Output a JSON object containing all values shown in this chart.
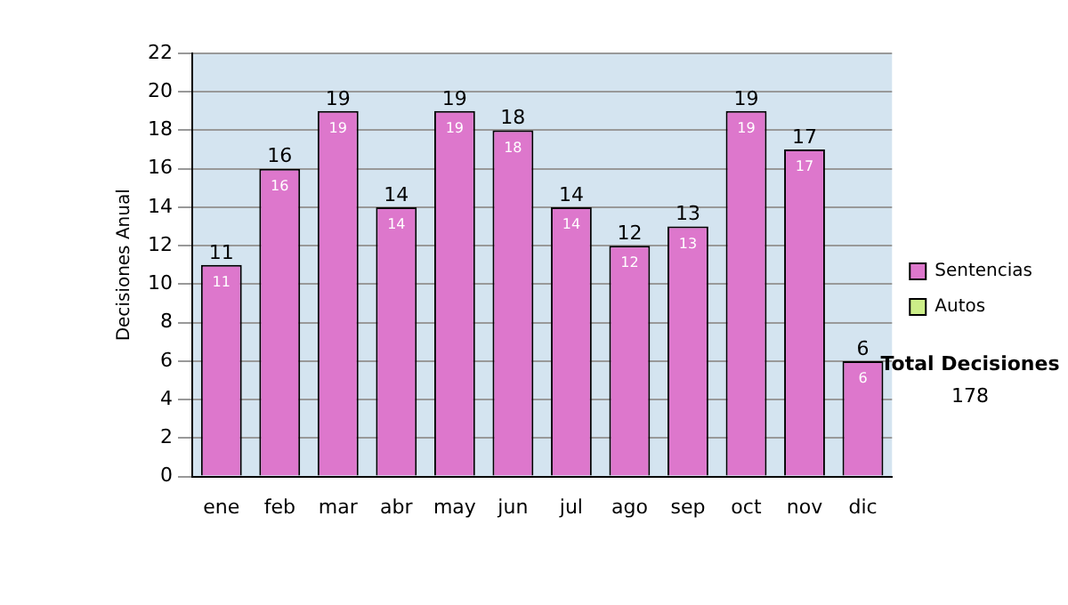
{
  "chart_data": {
    "type": "bar",
    "ylabel": "Decisiones Anual",
    "categories": [
      "ene",
      "feb",
      "mar",
      "abr",
      "may",
      "jun",
      "jul",
      "ago",
      "sep",
      "oct",
      "nov",
      "dic"
    ],
    "series": [
      {
        "name": "Sentencias",
        "color": "#dd77cc",
        "values": [
          11,
          16,
          19,
          14,
          19,
          18,
          14,
          12,
          13,
          19,
          17,
          6
        ]
      },
      {
        "name": "Autos",
        "color": "#ccee88",
        "values": [
          null,
          null,
          null,
          null,
          null,
          null,
          null,
          null,
          null,
          null,
          null,
          null
        ]
      }
    ],
    "ylim": [
      0,
      22
    ],
    "yticks": [
      0,
      2,
      4,
      6,
      8,
      10,
      12,
      14,
      16,
      18,
      20,
      22
    ],
    "grid": "y",
    "legend": "right",
    "data_labels": true,
    "annotations": [
      "Total Decisiones",
      "178",
      {
        "text": "11",
        "x": "ene",
        "y": 11
      },
      {
        "text": "16",
        "x": "feb",
        "y": 16
      },
      {
        "text": "19",
        "x": "mar",
        "y": 19
      },
      {
        "text": "14",
        "x": "abr",
        "y": 14
      },
      {
        "text": "19",
        "x": "may",
        "y": 19
      },
      {
        "text": "18",
        "x": "jun",
        "y": 18
      },
      {
        "text": "14",
        "x": "jul",
        "y": 14
      },
      {
        "text": "12",
        "x": "ago",
        "y": 12
      },
      {
        "text": "13",
        "x": "sep",
        "y": 13
      },
      {
        "text": "19",
        "x": "oct",
        "y": 19
      },
      {
        "text": "17",
        "x": "nov",
        "y": 17
      },
      {
        "text": "6",
        "x": "dic",
        "y": 6
      }
    ]
  }
}
